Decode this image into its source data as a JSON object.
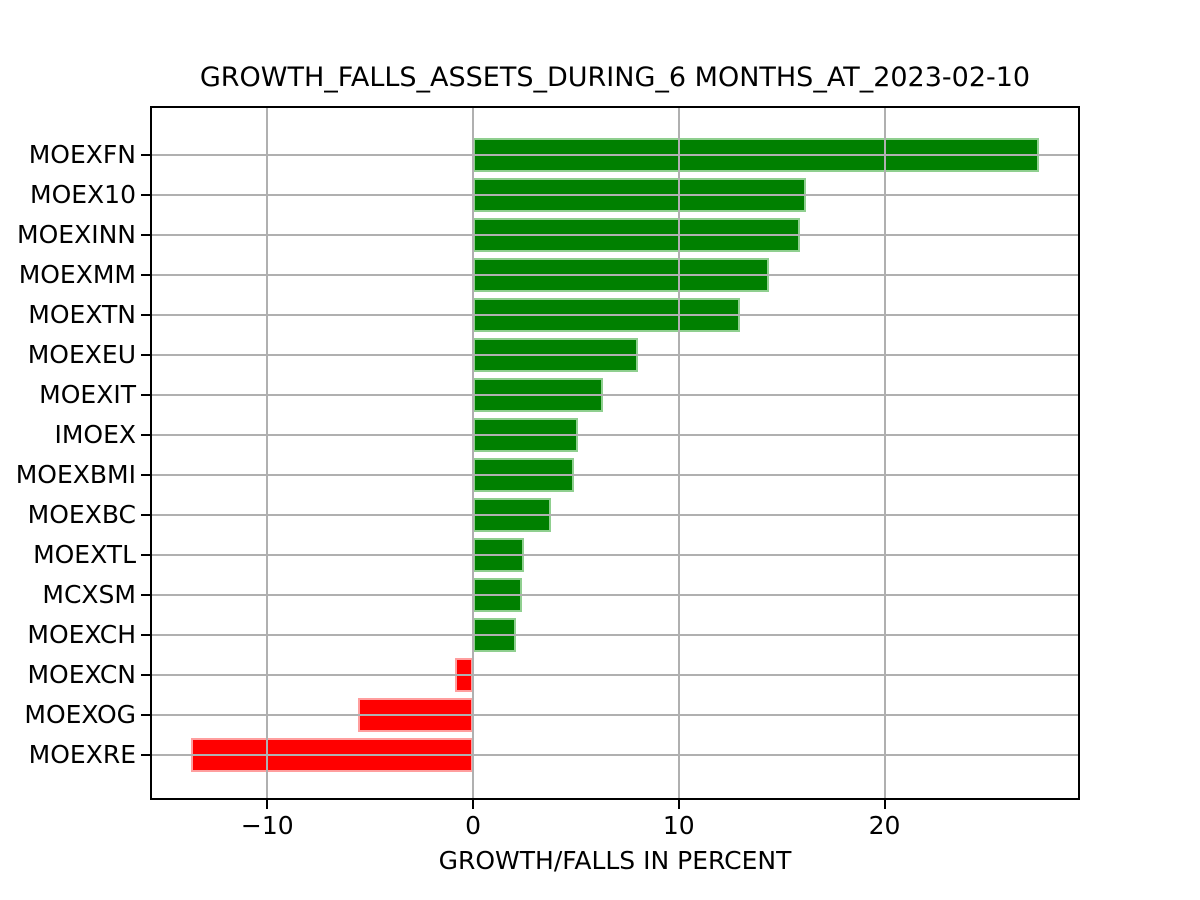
{
  "chart_data": {
    "type": "bar",
    "orientation": "horizontal",
    "title": "GROWTH_FALLS_ASSETS_DURING_6 MONTHS_AT_2023-02-10",
    "xlabel": "GROWTH/FALLS IN PERCENT",
    "ylabel": "",
    "categories": [
      "MOEXFN",
      "MOEX10",
      "MOEXINN",
      "MOEXMM",
      "MOEXTN",
      "MOEXEU",
      "MOEXIT",
      "IMOEX",
      "MOEXBMI",
      "MOEXBC",
      "MOEXTL",
      "MCXSM",
      "MOEXCH",
      "MOEXCN",
      "MOEXOG",
      "MOEXRE"
    ],
    "values": [
      27.5,
      16.2,
      15.9,
      14.4,
      13.0,
      8.0,
      6.3,
      5.1,
      4.9,
      3.8,
      2.5,
      2.4,
      2.1,
      -0.9,
      -5.6,
      -13.7
    ],
    "xticks": {
      "values": [
        -10,
        0,
        10,
        20
      ],
      "labels": [
        "−10",
        "0",
        "10",
        "20"
      ]
    },
    "xlim": [
      -15.7,
      29.5
    ],
    "grid": true,
    "legend": false,
    "colors": {
      "positive": "#008000",
      "negative": "#ff0000",
      "positive_edge": "#8fcf8f",
      "negative_edge": "#ff9e9e",
      "grid": "#b0b0b0",
      "frame": "#000000",
      "background": "#ffffff",
      "text": "#000000"
    }
  }
}
